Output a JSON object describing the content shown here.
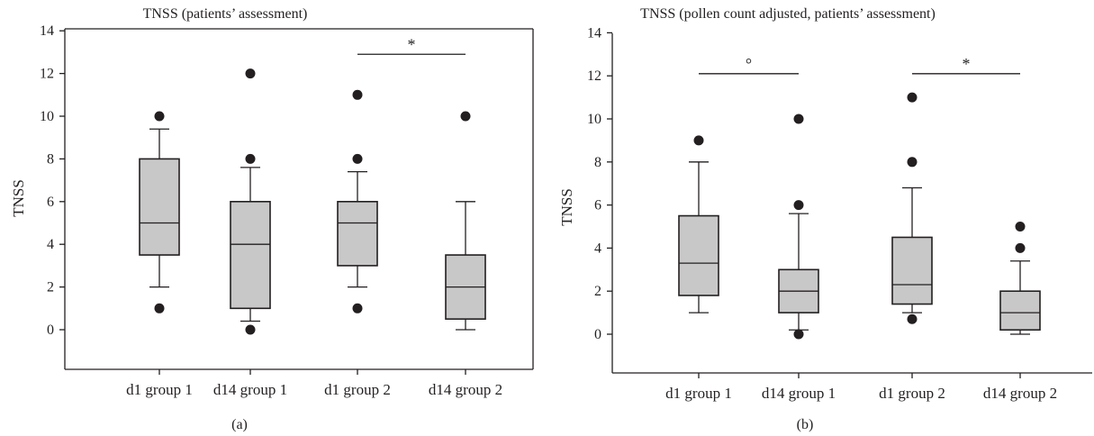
{
  "chart_data": [
    {
      "type": "box",
      "panel_label": "(a)",
      "title": "TNSS (patients’ assessment)",
      "xlabel": "",
      "ylabel": "TNSS",
      "ylim": [
        -2,
        14
      ],
      "yticks": [
        0,
        2,
        4,
        6,
        8,
        10,
        12,
        14
      ],
      "grid": false,
      "categories": [
        "d1 group 1",
        "d14 group 1",
        "d1 group 2",
        "d14 group 2"
      ],
      "boxes": [
        {
          "category": "d1 group 1",
          "whisker_low": 2,
          "q1": 3.5,
          "median": 5,
          "q3": 8,
          "whisker_high": 9.4,
          "outliers": [
            1,
            10
          ]
        },
        {
          "category": "d14 group 1",
          "whisker_low": 0.4,
          "q1": 1,
          "median": 4,
          "q3": 6,
          "whisker_high": 7.6,
          "outliers": [
            0,
            8,
            12
          ]
        },
        {
          "category": "d1 group 2",
          "whisker_low": 2,
          "q1": 3,
          "median": 5,
          "q3": 6,
          "whisker_high": 7.4,
          "outliers": [
            1,
            8,
            11
          ]
        },
        {
          "category": "d14 group 2",
          "whisker_low": 0,
          "q1": 0.5,
          "median": 2,
          "q3": 3.5,
          "whisker_high": 6,
          "outliers": [
            10
          ]
        }
      ],
      "annotations": [
        {
          "label": "*",
          "from": "d1 group 2",
          "to": "d14 group 2",
          "y": 12.9
        }
      ]
    },
    {
      "type": "box",
      "panel_label": "(b)",
      "title": "TNSS (pollen count adjusted, patients’ assessment)",
      "xlabel": "",
      "ylabel": "TNSS",
      "ylim": [
        -2,
        14
      ],
      "yticks": [
        0,
        2,
        4,
        6,
        8,
        10,
        12,
        14
      ],
      "grid": false,
      "categories": [
        "d1 group 1",
        "d14 group 1",
        "d1 group 2",
        "d14 group 2"
      ],
      "boxes": [
        {
          "category": "d1 group 1",
          "whisker_low": 1,
          "q1": 1.8,
          "median": 3.3,
          "q3": 5.5,
          "whisker_high": 8,
          "outliers": [
            9
          ]
        },
        {
          "category": "d14 group 1",
          "whisker_low": 0.2,
          "q1": 1,
          "median": 2,
          "q3": 3,
          "whisker_high": 5.6,
          "outliers": [
            0,
            6,
            10
          ]
        },
        {
          "category": "d1 group 2",
          "whisker_low": 1,
          "q1": 1.4,
          "median": 2.3,
          "q3": 4.5,
          "whisker_high": 6.8,
          "outliers": [
            0.7,
            8,
            11
          ]
        },
        {
          "category": "d14 group 2",
          "whisker_low": 0,
          "q1": 0.2,
          "median": 1,
          "q3": 2,
          "whisker_high": 3.4,
          "outliers": [
            4,
            5
          ]
        }
      ],
      "annotations": [
        {
          "label": "°",
          "from": "d1 group 1",
          "to": "d14 group 1",
          "y": 12.1
        },
        {
          "label": "*",
          "from": "d1 group 2",
          "to": "d14 group 2",
          "y": 12.1
        }
      ]
    }
  ],
  "style": {
    "box_fill": "#c8c8c8",
    "line_color": "#231f20",
    "outlier_color": "#231f20"
  }
}
